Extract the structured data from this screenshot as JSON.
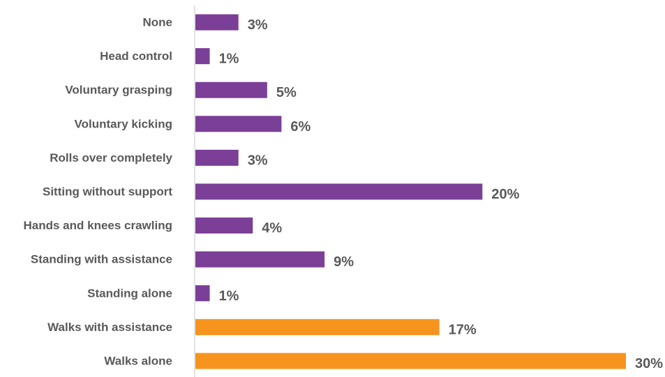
{
  "chart_data": {
    "type": "bar",
    "orientation": "horizontal",
    "title": "",
    "xlabel": "",
    "ylabel": "",
    "xlim": [
      0,
      30
    ],
    "grid": false,
    "legend": "none",
    "categories": [
      "None",
      "Head control",
      "Voluntary grasping",
      "Voluntary kicking",
      "Rolls over completely",
      "Sitting without support",
      "Hands and knees crawling",
      "Standing with assistance",
      "Standing alone",
      "Walks with assistance",
      "Walks alone"
    ],
    "values": [
      3,
      1,
      5,
      6,
      3,
      20,
      4,
      9,
      1,
      17,
      30
    ],
    "value_labels": [
      "3%",
      "1%",
      "5%",
      "6%",
      "3%",
      "20%",
      "4%",
      "9%",
      "1%",
      "17%",
      "30%"
    ],
    "bar_colors": [
      "#7B3F98",
      "#7B3F98",
      "#7B3F98",
      "#7B3F98",
      "#7B3F98",
      "#7B3F98",
      "#7B3F98",
      "#7B3F98",
      "#7B3F98",
      "#F7941D",
      "#F7941D"
    ],
    "axis_color": "#D9D9D9",
    "label_color": "#595959"
  }
}
